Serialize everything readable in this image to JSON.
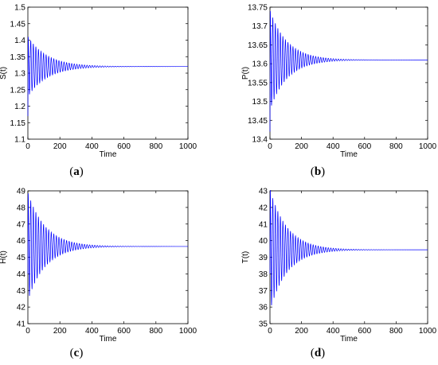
{
  "chart_data": [
    {
      "type": "line",
      "panel_label": "(a)",
      "panel_letter": "a",
      "xlabel": "Time",
      "ylabel": "S(t)",
      "xlim": [
        0,
        1000
      ],
      "ylim": [
        1.1,
        1.5
      ],
      "xticks": [
        0,
        200,
        400,
        600,
        800,
        1000
      ],
      "yticks": [
        1.1,
        1.15,
        1.2,
        1.25,
        1.3,
        1.35,
        1.4,
        1.45,
        1.5
      ],
      "ytick_labels": [
        "1.1",
        "1.15",
        "1.2",
        "1.25",
        "1.3",
        "1.35",
        "1.4",
        "1.45",
        "1.5"
      ],
      "series_color": "#0000ff",
      "initial_value": 1.17,
      "equilibrium": 1.32,
      "amplitude_start": 0.09,
      "decay_time": 120,
      "period": 16
    },
    {
      "type": "line",
      "panel_label": "(b)",
      "panel_letter": "b",
      "xlabel": "Time",
      "ylabel": "P(t)",
      "xlim": [
        0,
        1000
      ],
      "ylim": [
        13.4,
        13.75
      ],
      "xticks": [
        0,
        200,
        400,
        600,
        800,
        1000
      ],
      "yticks": [
        13.4,
        13.45,
        13.5,
        13.55,
        13.6,
        13.65,
        13.7,
        13.75
      ],
      "ytick_labels": [
        "13.4",
        "13.45",
        "13.5",
        "13.55",
        "13.6",
        "13.65",
        "13.7",
        "13.75"
      ],
      "series_color": "#0000ff",
      "initial_value": 13.42,
      "equilibrium": 13.61,
      "amplitude_start": 0.13,
      "decay_time": 110,
      "period": 16
    },
    {
      "type": "line",
      "panel_label": "(c)",
      "panel_letter": "c",
      "xlabel": "Time",
      "ylabel": "H(t)",
      "xlim": [
        0,
        1000
      ],
      "ylim": [
        41,
        49
      ],
      "xticks": [
        0,
        200,
        400,
        600,
        800,
        1000
      ],
      "yticks": [
        41,
        42,
        43,
        44,
        45,
        46,
        47,
        48,
        49
      ],
      "ytick_labels": [
        "41",
        "42",
        "43",
        "44",
        "45",
        "46",
        "47",
        "48",
        "49"
      ],
      "series_color": "#0000ff",
      "initial_value": 44,
      "equilibrium": 45.65,
      "amplitude_start": 3.2,
      "decay_time": 110,
      "period": 16
    },
    {
      "type": "line",
      "panel_label": "(d)",
      "panel_letter": "d",
      "xlabel": "Time",
      "ylabel": "T(t)",
      "xlim": [
        0,
        1000
      ],
      "ylim": [
        35,
        43
      ],
      "xticks": [
        0,
        200,
        400,
        600,
        800,
        1000
      ],
      "yticks": [
        35,
        36,
        37,
        38,
        39,
        40,
        41,
        42,
        43
      ],
      "ytick_labels": [
        "35",
        "36",
        "37",
        "38",
        "39",
        "40",
        "41",
        "42",
        "43"
      ],
      "series_color": "#0000ff",
      "initial_value": 38,
      "equilibrium": 39.45,
      "amplitude_start": 3.6,
      "decay_time": 110,
      "period": 16
    }
  ]
}
